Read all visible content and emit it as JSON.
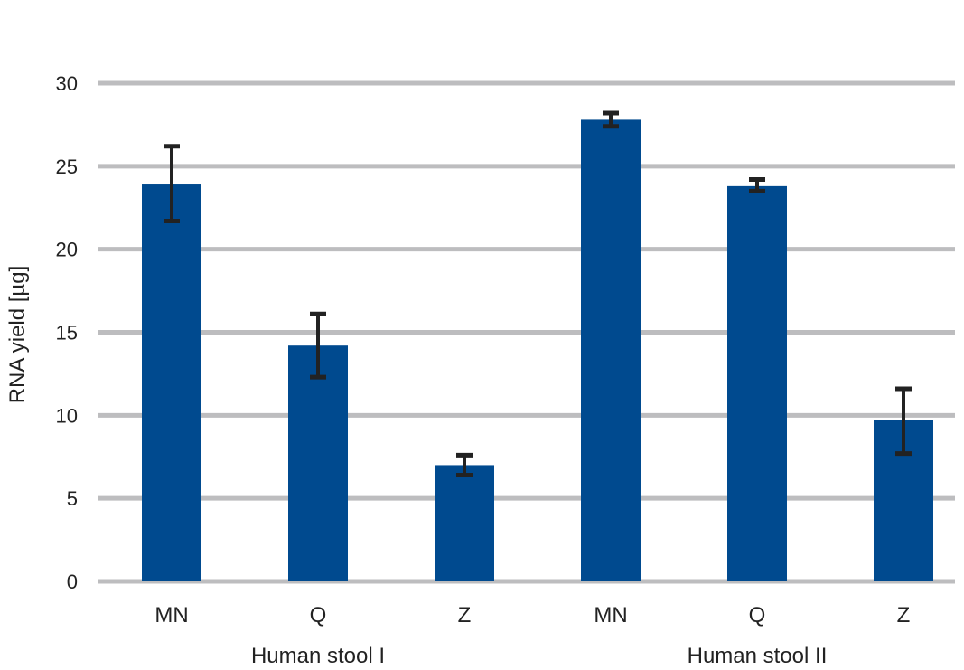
{
  "chart_data": {
    "type": "bar",
    "ylabel": "RNA yield [µg]",
    "ylim": [
      0,
      30
    ],
    "yticks": [
      0,
      5,
      10,
      15,
      20,
      25,
      30
    ],
    "grid": true,
    "colors": {
      "bar": "#004a8f",
      "grid": "#bdbdbf",
      "error": "#222222"
    },
    "groups": [
      {
        "label": "Human stool I",
        "bars": [
          {
            "category": "MN",
            "value": 23.9,
            "error": [
              21.7,
              26.2
            ]
          },
          {
            "category": "Q",
            "value": 14.2,
            "error": [
              12.3,
              16.1
            ]
          },
          {
            "category": "Z",
            "value": 7.0,
            "error": [
              6.4,
              7.6
            ]
          }
        ]
      },
      {
        "label": "Human stool II",
        "bars": [
          {
            "category": "MN",
            "value": 27.8,
            "error": [
              27.4,
              28.2
            ]
          },
          {
            "category": "Q",
            "value": 23.8,
            "error": [
              23.5,
              24.2
            ]
          },
          {
            "category": "Z",
            "value": 9.7,
            "error": [
              7.7,
              11.6
            ]
          }
        ]
      }
    ]
  }
}
